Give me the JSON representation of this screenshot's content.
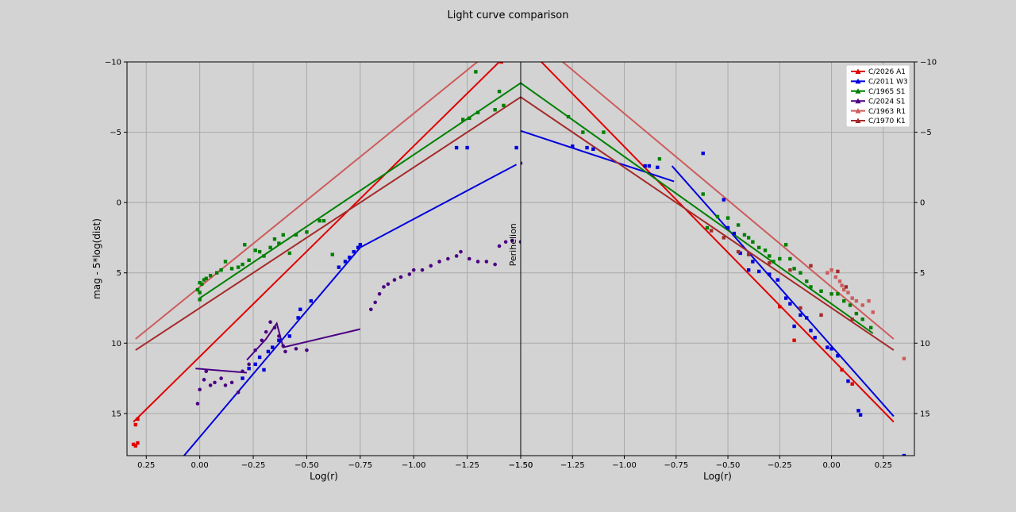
{
  "title": "Light curve comparison",
  "chart_data": [
    {
      "type": "scatter",
      "panel": "left",
      "xlabel": "Log(r)",
      "ylabel": "mag - 5*log(dist)",
      "xlim": [
        0.34,
        -1.5
      ],
      "ylim": [
        18,
        -10
      ],
      "x_ticks": [
        "0.25",
        "0.00",
        "−0.25",
        "−0.50",
        "−0.75",
        "−1.00",
        "−1.25",
        "−1.50"
      ],
      "y_ticks": [
        "−10",
        "−5",
        "0",
        "5",
        "10",
        "15"
      ],
      "grid": true,
      "series": [
        {
          "name": "C/2026 A1",
          "color": "#e00000",
          "points": [
            [
              0.31,
              17.2
            ],
            [
              0.3,
              17.3
            ],
            [
              0.29,
              17.1
            ],
            [
              0.3,
              15.8
            ],
            [
              0.29,
              15.4
            ],
            [
              -1.41,
              -10
            ]
          ],
          "fit": [
            [
              0.31,
              15.6
            ],
            [
              -1.5,
              -11.5
            ]
          ]
        },
        {
          "name": "C/2011 W3",
          "color": "#0000dd",
          "points": [
            [
              -0.2,
              12.5
            ],
            [
              -0.23,
              11.8
            ],
            [
              -0.26,
              11.5
            ],
            [
              -0.28,
              11.0
            ],
            [
              -0.3,
              11.9
            ],
            [
              -0.32,
              10.6
            ],
            [
              -0.34,
              10.3
            ],
            [
              -0.37,
              9.8
            ],
            [
              -0.42,
              9.5
            ],
            [
              -0.46,
              8.2
            ],
            [
              -0.47,
              7.6
            ],
            [
              -0.52,
              7.0
            ],
            [
              -0.65,
              4.6
            ],
            [
              -0.68,
              4.2
            ],
            [
              -0.7,
              3.9
            ],
            [
              -0.72,
              3.5
            ],
            [
              -0.74,
              3.2
            ],
            [
              -0.75,
              3.0
            ],
            [
              -1.2,
              -3.9
            ],
            [
              -1.25,
              -3.9
            ],
            [
              -1.48,
              -3.9
            ]
          ],
          "fit": [
            [
              0.09,
              18.3
            ],
            [
              -0.75,
              3.2
            ],
            [
              -1.48,
              -2.7
            ]
          ]
        },
        {
          "name": "C/1965 S1",
          "color": "#008000",
          "points": [
            [
              0.0,
              6.9
            ],
            [
              0.0,
              6.4
            ],
            [
              0.01,
              6.2
            ],
            [
              -0.01,
              5.8
            ],
            [
              0.0,
              5.7
            ],
            [
              -0.02,
              5.5
            ],
            [
              -0.03,
              5.4
            ],
            [
              -0.05,
              5.2
            ],
            [
              -0.08,
              5.0
            ],
            [
              -0.1,
              4.8
            ],
            [
              -0.12,
              4.2
            ],
            [
              -0.15,
              4.7
            ],
            [
              -0.18,
              4.6
            ],
            [
              -0.2,
              4.4
            ],
            [
              -0.21,
              3.0
            ],
            [
              -0.23,
              4.1
            ],
            [
              -0.26,
              3.4
            ],
            [
              -0.28,
              3.5
            ],
            [
              -0.3,
              3.8
            ],
            [
              -0.33,
              3.2
            ],
            [
              -0.35,
              2.6
            ],
            [
              -0.37,
              2.9
            ],
            [
              -0.39,
              2.3
            ],
            [
              -0.42,
              3.6
            ],
            [
              -0.45,
              2.3
            ],
            [
              -0.5,
              2.1
            ],
            [
              -0.56,
              1.3
            ],
            [
              -0.58,
              1.3
            ],
            [
              -0.62,
              3.7
            ],
            [
              -1.23,
              -5.9
            ],
            [
              -1.26,
              -6.0
            ],
            [
              -1.29,
              -9.3
            ],
            [
              -1.3,
              -6.4
            ],
            [
              -1.38,
              -6.6
            ],
            [
              -1.4,
              -7.9
            ],
            [
              -1.42,
              -6.9
            ]
          ],
          "fit": [
            [
              0.0,
              6.8
            ],
            [
              -1.5,
              -8.5
            ]
          ]
        },
        {
          "name": "C/2024 S1",
          "color": "#4b0082",
          "points": [
            [
              0.01,
              14.3
            ],
            [
              0.0,
              13.3
            ],
            [
              -0.02,
              12.6
            ],
            [
              -0.03,
              12.0
            ],
            [
              -0.05,
              13.0
            ],
            [
              -0.07,
              12.8
            ],
            [
              -0.1,
              12.5
            ],
            [
              -0.12,
              13.0
            ],
            [
              -0.15,
              12.8
            ],
            [
              -0.18,
              13.5
            ],
            [
              -0.2,
              12.0
            ],
            [
              -0.23,
              11.5
            ],
            [
              -0.26,
              10.5
            ],
            [
              -0.29,
              9.8
            ],
            [
              -0.31,
              9.2
            ],
            [
              -0.33,
              8.5
            ],
            [
              -0.35,
              8.9
            ],
            [
              -0.37,
              9.5
            ],
            [
              -0.39,
              10.2
            ],
            [
              -0.4,
              10.6
            ],
            [
              -0.45,
              10.4
            ],
            [
              -0.5,
              10.5
            ],
            [
              -0.8,
              7.6
            ],
            [
              -0.82,
              7.1
            ],
            [
              -0.84,
              6.5
            ],
            [
              -0.86,
              6.0
            ],
            [
              -0.88,
              5.8
            ],
            [
              -0.91,
              5.5
            ],
            [
              -0.94,
              5.3
            ],
            [
              -0.98,
              5.1
            ],
            [
              -1.0,
              4.8
            ],
            [
              -1.04,
              4.8
            ],
            [
              -1.08,
              4.5
            ],
            [
              -1.12,
              4.2
            ],
            [
              -1.16,
              4.0
            ],
            [
              -1.2,
              3.8
            ],
            [
              -1.22,
              3.5
            ],
            [
              -1.26,
              4.0
            ],
            [
              -1.3,
              4.2
            ],
            [
              -1.34,
              4.2
            ],
            [
              -1.38,
              4.4
            ],
            [
              -1.4,
              3.1
            ],
            [
              -1.43,
              2.8
            ],
            [
              -1.46,
              2.7
            ],
            [
              -1.5,
              2.8
            ]
          ],
          "fit": [
            [
              0.02,
              11.8
            ],
            [
              -0.22,
              12.1
            ]
          ],
          "fit2": [
            [
              -0.22,
              11.2
            ],
            [
              -0.31,
              9.7
            ],
            [
              -0.36,
              8.6
            ],
            [
              -0.39,
              10.3
            ],
            [
              -0.75,
              9.0
            ]
          ]
        },
        {
          "name": "C/1963 R1",
          "color": "#cd5c5c",
          "points": [],
          "fit": [
            [
              0.3,
              9.7
            ],
            [
              -1.5,
              -12.5
            ]
          ]
        },
        {
          "name": "C/1970 K1",
          "color": "#a52a2a",
          "points": [],
          "fit": [
            [
              0.3,
              10.5
            ],
            [
              -1.5,
              -7.5
            ]
          ]
        }
      ]
    },
    {
      "type": "scatter",
      "panel": "right",
      "xlabel": "Log(r)",
      "xlim": [
        -1.5,
        0.4
      ],
      "ylim": [
        18,
        -10
      ],
      "x_ticks": [
        "−1.50",
        "−1.25",
        "−1.00",
        "−0.75",
        "−0.50",
        "−0.25",
        "0.00",
        "0.25"
      ],
      "y_ticks": [
        "−10",
        "−5",
        "0",
        "5",
        "10",
        "15"
      ],
      "grid": true,
      "annotation": "Perihelion",
      "legend_position": "top-right",
      "series": [
        {
          "name": "C/2026 A1",
          "color": "#e00000",
          "points": [
            [
              -0.25,
              7.4
            ],
            [
              -0.18,
              9.8
            ],
            [
              0.05,
              11.9
            ],
            [
              0.1,
              12.9
            ]
          ],
          "fit": [
            [
              -1.5,
              -11.5
            ],
            [
              0.3,
              15.6
            ]
          ]
        },
        {
          "name": "C/2011 W3",
          "color": "#0000dd",
          "points": [
            [
              -1.25,
              -4.0
            ],
            [
              -1.18,
              -3.9
            ],
            [
              -1.15,
              -3.8
            ],
            [
              -0.9,
              -2.6
            ],
            [
              -0.88,
              -2.6
            ],
            [
              -0.84,
              -2.5
            ],
            [
              -0.62,
              -3.5
            ],
            [
              -0.52,
              -0.2
            ],
            [
              -0.5,
              1.8
            ],
            [
              -0.47,
              2.2
            ],
            [
              -0.44,
              3.6
            ],
            [
              -0.4,
              4.8
            ],
            [
              -0.38,
              4.2
            ],
            [
              -0.35,
              4.9
            ],
            [
              -0.3,
              5.1
            ],
            [
              -0.26,
              5.5
            ],
            [
              -0.22,
              6.8
            ],
            [
              -0.2,
              7.2
            ],
            [
              -0.18,
              8.8
            ],
            [
              -0.15,
              8.0
            ],
            [
              -0.12,
              8.2
            ],
            [
              -0.1,
              9.1
            ],
            [
              -0.08,
              9.6
            ],
            [
              -0.02,
              10.3
            ],
            [
              0.0,
              10.4
            ],
            [
              0.03,
              10.9
            ],
            [
              0.08,
              12.7
            ],
            [
              0.13,
              14.8
            ],
            [
              0.14,
              15.1
            ],
            [
              0.35,
              18.0
            ]
          ],
          "fit": [
            [
              -1.5,
              -5.1
            ],
            [
              -0.76,
              -1.5
            ]
          ],
          "fit2": [
            [
              -0.77,
              -2.6
            ],
            [
              0.3,
              15.2
            ]
          ]
        },
        {
          "name": "C/1965 S1",
          "color": "#008000",
          "points": [
            [
              -1.27,
              -6.1
            ],
            [
              -1.2,
              -5.0
            ],
            [
              -1.1,
              -5.0
            ],
            [
              -0.83,
              -3.1
            ],
            [
              -0.62,
              -0.6
            ],
            [
              -0.6,
              1.8
            ],
            [
              -0.55,
              1.0
            ],
            [
              -0.5,
              1.1
            ],
            [
              -0.45,
              1.6
            ],
            [
              -0.42,
              2.3
            ],
            [
              -0.4,
              2.5
            ],
            [
              -0.38,
              2.8
            ],
            [
              -0.35,
              3.2
            ],
            [
              -0.32,
              3.4
            ],
            [
              -0.3,
              3.8
            ],
            [
              -0.28,
              4.2
            ],
            [
              -0.25,
              4.0
            ],
            [
              -0.22,
              3.0
            ],
            [
              -0.2,
              4.0
            ],
            [
              -0.18,
              4.7
            ],
            [
              -0.15,
              5.0
            ],
            [
              -0.12,
              5.6
            ],
            [
              -0.1,
              6.0
            ],
            [
              -0.05,
              6.3
            ],
            [
              0.0,
              6.5
            ],
            [
              0.03,
              6.5
            ],
            [
              0.06,
              7.0
            ],
            [
              0.09,
              7.3
            ],
            [
              0.12,
              7.9
            ],
            [
              0.15,
              8.3
            ],
            [
              0.19,
              8.9
            ]
          ],
          "fit": [
            [
              -1.5,
              -8.5
            ],
            [
              0.2,
              9.3
            ]
          ]
        },
        {
          "name": "C/2024 S1",
          "color": "#4b0082",
          "points": [
            [
              -1.5,
              -2.8
            ]
          ],
          "fit": []
        },
        {
          "name": "C/1963 R1",
          "color": "#cd5c5c",
          "points": [
            [
              -0.02,
              5.0
            ],
            [
              0.0,
              4.8
            ],
            [
              0.02,
              5.3
            ],
            [
              0.04,
              5.6
            ],
            [
              0.05,
              5.9
            ],
            [
              0.06,
              6.2
            ],
            [
              0.08,
              6.4
            ],
            [
              0.1,
              6.8
            ],
            [
              0.12,
              7.0
            ],
            [
              0.15,
              7.3
            ],
            [
              0.18,
              7.0
            ],
            [
              0.2,
              7.8
            ],
            [
              0.35,
              11.1
            ]
          ],
          "fit": [
            [
              -1.5,
              -12.5
            ],
            [
              0.3,
              9.7
            ]
          ]
        },
        {
          "name": "C/1970 K1",
          "color": "#a52a2a",
          "points": [
            [
              -0.58,
              2.0
            ],
            [
              -0.52,
              2.5
            ],
            [
              -0.45,
              3.5
            ],
            [
              -0.4,
              3.7
            ],
            [
              -0.3,
              4.3
            ],
            [
              -0.2,
              4.8
            ],
            [
              -0.15,
              7.5
            ],
            [
              -0.1,
              4.5
            ],
            [
              -0.05,
              8.0
            ],
            [
              0.03,
              4.9
            ],
            [
              0.07,
              6.0
            ],
            [
              0.1,
              8.3
            ]
          ],
          "fit": [
            [
              -1.5,
              -7.5
            ],
            [
              0.3,
              10.5
            ]
          ]
        }
      ]
    }
  ]
}
